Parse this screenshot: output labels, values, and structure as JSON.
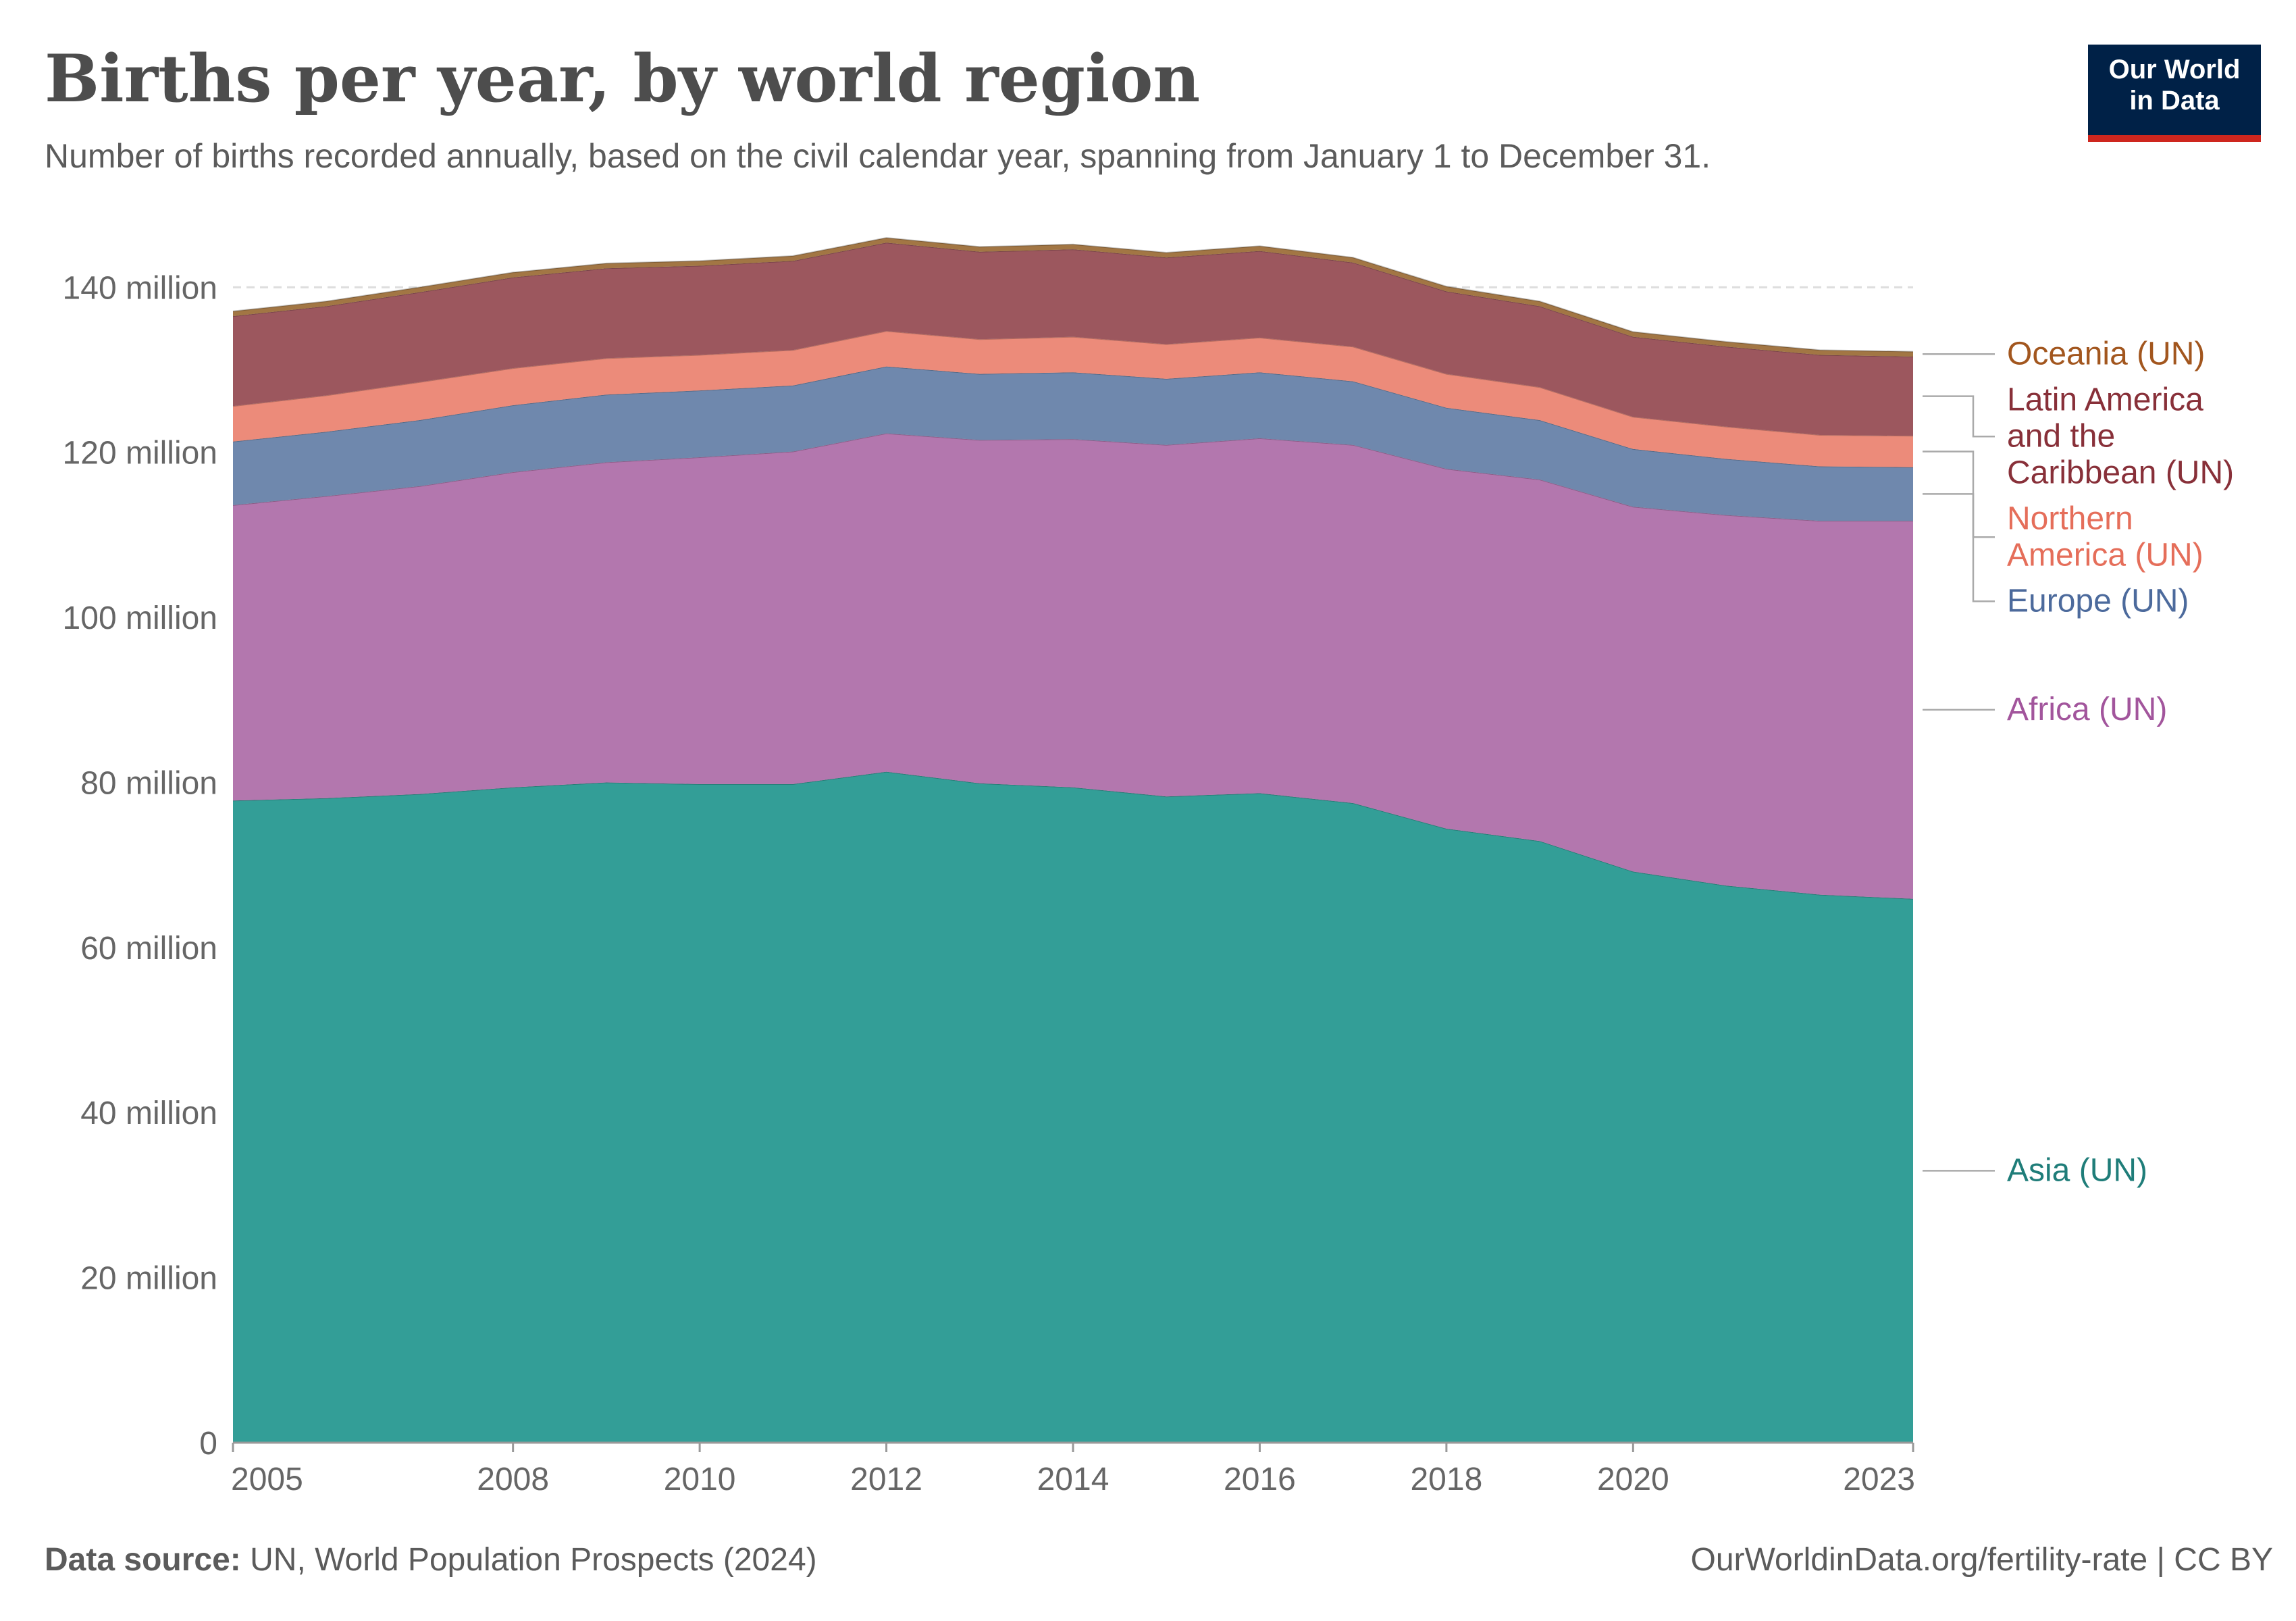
{
  "header": {
    "title": "Births per year, by world region",
    "subtitle": "Number of births recorded annually, based on the civil calendar year, spanning from January 1 to December 31."
  },
  "logo": {
    "line1": "Our World",
    "line2": "in Data"
  },
  "footer": {
    "source_label": "Data source:",
    "source_text": "UN, World Population Prospects (2024)",
    "url": "OurWorldinData.org/fertility-rate",
    "license": "| CC BY"
  },
  "chart_data": {
    "type": "area",
    "stacked": true,
    "x": [
      2005,
      2006,
      2007,
      2008,
      2009,
      2010,
      2011,
      2012,
      2013,
      2014,
      2015,
      2016,
      2017,
      2018,
      2019,
      2020,
      2021,
      2022,
      2023
    ],
    "x_ticks": [
      2005,
      2008,
      2010,
      2012,
      2014,
      2016,
      2018,
      2020,
      2023
    ],
    "y_ticks": [
      0,
      20,
      40,
      60,
      80,
      100,
      120,
      140
    ],
    "y_tick_labels": [
      "0",
      "20 million",
      "40 million",
      "60 million",
      "80 million",
      "100 million",
      "120 million",
      "140 million"
    ],
    "ylim": [
      0,
      146
    ],
    "grid": "horizontal dashed",
    "legend": "right, inline labels",
    "series": [
      {
        "name": "Asia (UN)",
        "color": "#339e97",
        "text_color": "#1f7d79",
        "values": [
          77.8,
          78.1,
          78.6,
          79.4,
          80.0,
          79.8,
          79.8,
          81.3,
          79.9,
          79.4,
          78.3,
          78.7,
          77.5,
          74.4,
          72.9,
          69.2,
          67.5,
          66.4,
          65.9
        ]
      },
      {
        "name": "Africa (UN)",
        "color": "#b377ae",
        "text_color": "#a2559c",
        "values": [
          35.8,
          36.6,
          37.3,
          38.2,
          38.8,
          39.6,
          40.3,
          41.0,
          41.6,
          42.2,
          42.6,
          43.0,
          43.4,
          43.6,
          43.8,
          44.2,
          44.9,
          45.3,
          45.8
        ]
      },
      {
        "name": "Europe (UN)",
        "color": "#6f88ad",
        "text_color": "#4c6a9c",
        "values": [
          7.7,
          7.8,
          8.0,
          8.1,
          8.2,
          8.1,
          8.0,
          8.1,
          8.0,
          8.1,
          8.0,
          8.0,
          7.7,
          7.4,
          7.2,
          7.0,
          6.8,
          6.6,
          6.5
        ]
      },
      {
        "name": "Northern America (UN)",
        "color": "#ec8b7a",
        "text_color": "#e56e5a",
        "values": [
          4.3,
          4.4,
          4.6,
          4.5,
          4.4,
          4.3,
          4.3,
          4.3,
          4.2,
          4.3,
          4.2,
          4.2,
          4.2,
          4.1,
          4.0,
          3.9,
          3.9,
          3.8,
          3.8
        ]
      },
      {
        "name": "Latin America and the Caribbean (UN)",
        "color": "#9c575e",
        "text_color": "#883039",
        "values": [
          10.9,
          10.8,
          10.9,
          11.0,
          10.9,
          10.8,
          10.8,
          10.7,
          10.6,
          10.6,
          10.5,
          10.5,
          10.2,
          10.0,
          9.8,
          9.7,
          9.7,
          9.7,
          9.6
        ]
      },
      {
        "name": "Oceania (UN)",
        "color": "#a27644",
        "text_color": "#a2561e",
        "values": [
          0.6,
          0.6,
          0.6,
          0.6,
          0.6,
          0.6,
          0.6,
          0.6,
          0.6,
          0.6,
          0.6,
          0.6,
          0.6,
          0.6,
          0.6,
          0.6,
          0.6,
          0.6,
          0.6
        ]
      }
    ]
  }
}
